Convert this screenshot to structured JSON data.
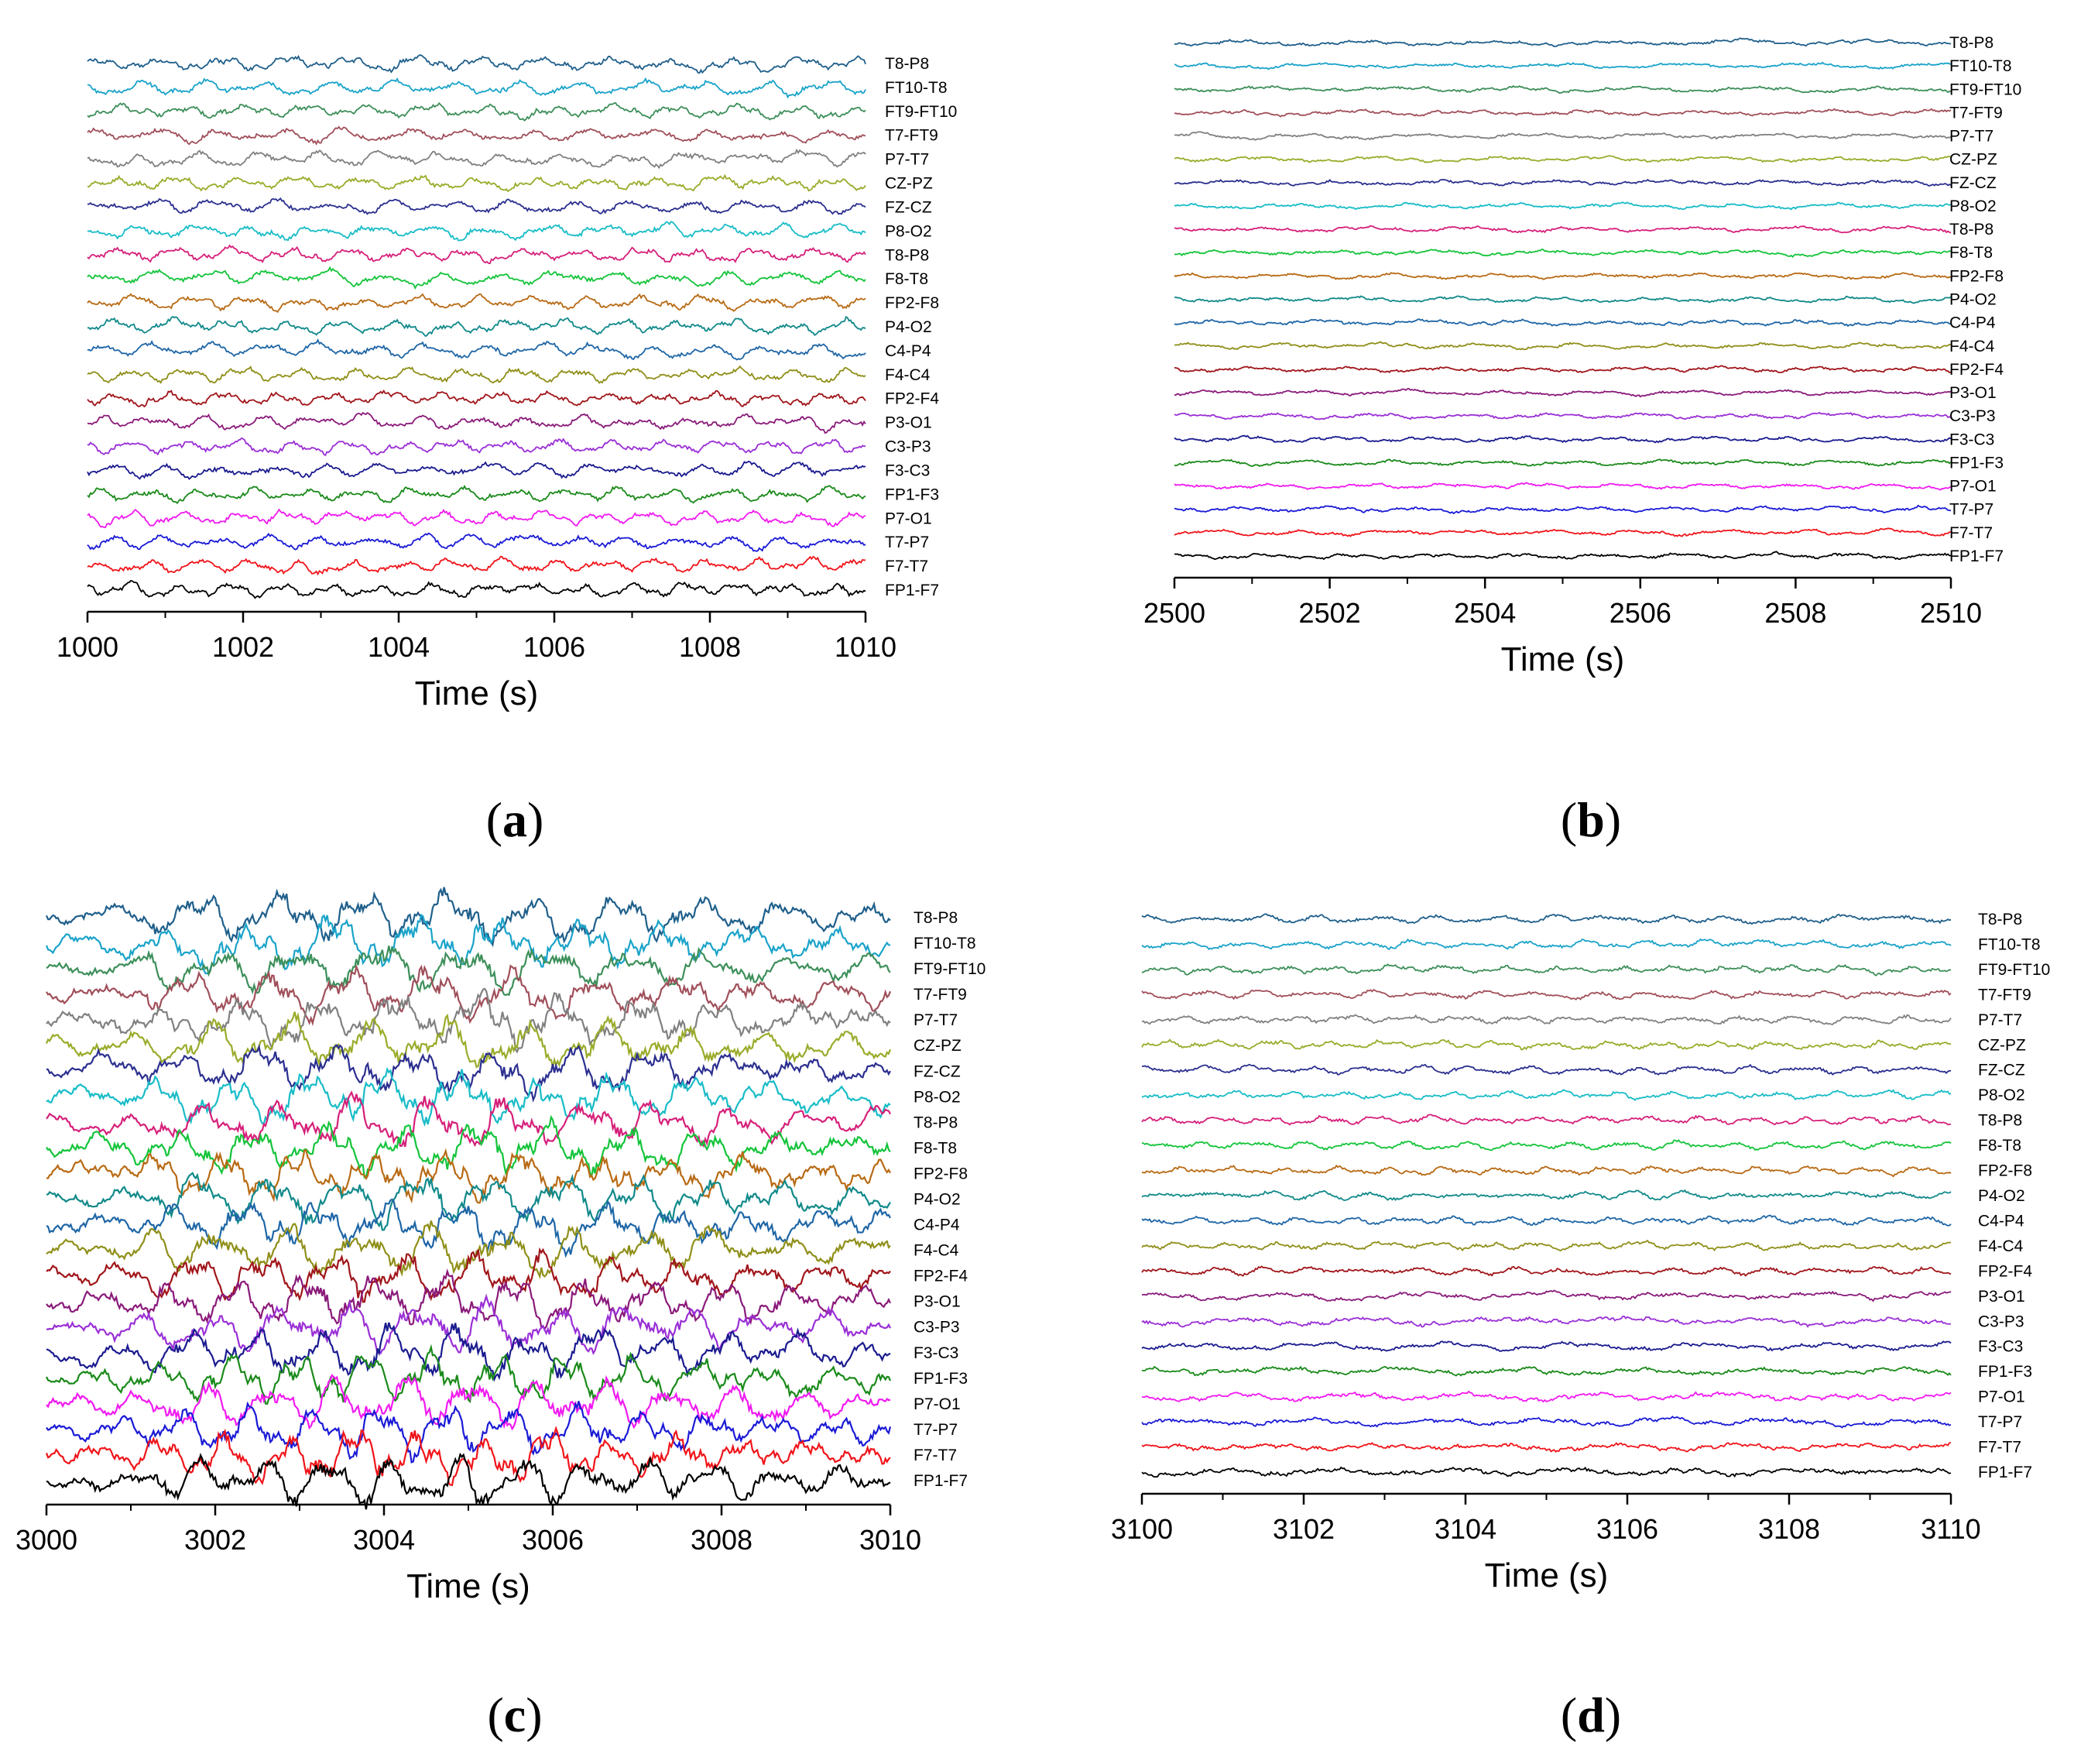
{
  "figure": {
    "panels": [
      {
        "letter_open": "(",
        "letter": "a",
        "letter_close": ")"
      },
      {
        "letter_open": "(",
        "letter": "b",
        "letter_close": ")"
      },
      {
        "letter_open": "(",
        "letter": "c",
        "letter_close": ")"
      },
      {
        "letter_open": "(",
        "letter": "d",
        "letter_close": ")"
      }
    ]
  },
  "chart_data": [
    {
      "type": "line",
      "panel": "a",
      "title": "",
      "xlabel": "Time (s)",
      "ylabel": "",
      "xlim": [
        1000,
        1010
      ],
      "xticks": [
        1000,
        1002,
        1004,
        1006,
        1008,
        1010
      ],
      "amplitude_level": "medium",
      "channels": [
        "T8-P8",
        "FT10-T8",
        "FT9-FT10",
        "T7-FT9",
        "P7-T7",
        "CZ-PZ",
        "FZ-CZ",
        "P8-O2",
        "T8-P8",
        "F8-T8",
        "FP2-F8",
        "P4-O2",
        "C4-P4",
        "F4-C4",
        "FP2-F4",
        "P3-O1",
        "C3-P3",
        "F3-C3",
        "FP1-F3",
        "P7-O1",
        "T7-P7",
        "F7-T7",
        "FP1-F7"
      ]
    },
    {
      "type": "line",
      "panel": "b",
      "title": "",
      "xlabel": "Time (s)",
      "ylabel": "",
      "xlim": [
        2500,
        2510
      ],
      "xticks": [
        2500,
        2502,
        2504,
        2506,
        2508,
        2510
      ],
      "amplitude_level": "low",
      "channels": [
        "T8-P8",
        "FT10-T8",
        "FT9-FT10",
        "T7-FT9",
        "P7-T7",
        "CZ-PZ",
        "FZ-CZ",
        "P8-O2",
        "T8-P8",
        "F8-T8",
        "FP2-F8",
        "P4-O2",
        "C4-P4",
        "F4-C4",
        "FP2-F4",
        "P3-O1",
        "C3-P3",
        "F3-C3",
        "FP1-F3",
        "P7-O1",
        "T7-P7",
        "F7-T7",
        "FP1-F7"
      ]
    },
    {
      "type": "line",
      "panel": "c",
      "title": "",
      "xlabel": "Time (s)",
      "ylabel": "",
      "xlim": [
        3000,
        3010
      ],
      "xticks": [
        3000,
        3002,
        3004,
        3006,
        3008,
        3010
      ],
      "amplitude_level": "high (seizure activity)",
      "channels": [
        "T8-P8",
        "FT10-T8",
        "FT9-FT10",
        "T7-FT9",
        "P7-T7",
        "CZ-PZ",
        "FZ-CZ",
        "P8-O2",
        "T8-P8",
        "F8-T8",
        "FP2-F8",
        "P4-O2",
        "C4-P4",
        "F4-C4",
        "FP2-F4",
        "P3-O1",
        "C3-P3",
        "F3-C3",
        "FP1-F3",
        "P7-O1",
        "T7-P7",
        "F7-T7",
        "FP1-F7"
      ]
    },
    {
      "type": "line",
      "panel": "d",
      "title": "",
      "xlabel": "Time (s)",
      "ylabel": "",
      "xlim": [
        3100,
        3110
      ],
      "xticks": [
        3100,
        3102,
        3104,
        3106,
        3108,
        3110
      ],
      "amplitude_level": "low-medium",
      "channels": [
        "T8-P8",
        "FT10-T8",
        "FT9-FT10",
        "T7-FT9",
        "P7-T7",
        "CZ-PZ",
        "FZ-CZ",
        "P8-O2",
        "T8-P8",
        "F8-T8",
        "FP2-F8",
        "P4-O2",
        "C4-P4",
        "F4-C4",
        "FP2-F4",
        "P3-O1",
        "C3-P3",
        "F3-C3",
        "FP1-F3",
        "P7-O1",
        "T7-P7",
        "F7-T7",
        "FP1-F7"
      ]
    }
  ],
  "channel_colors": [
    "#1f5f8b",
    "#1aa3c9",
    "#3d8f5a",
    "#a04f5a",
    "#808080",
    "#9aab2a",
    "#2b2f8f",
    "#18bcc7",
    "#d6207a",
    "#14c43a",
    "#b86a14",
    "#11898a",
    "#1e66a6",
    "#8f8f1a",
    "#a0151a",
    "#8a1a7a",
    "#9a2fd6",
    "#1a1a8f",
    "#1a8a1a",
    "#f01af0",
    "#1a1ad6",
    "#f0141a",
    "#000000"
  ]
}
